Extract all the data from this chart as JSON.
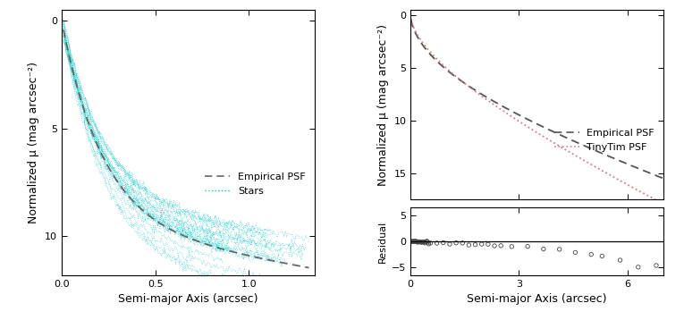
{
  "left_panel": {
    "xlabel": "Semi-major Axis (arcsec)",
    "ylabel": "Normalized μ (mag arcsec⁻²)",
    "xlim": [
      0.0,
      1.35
    ],
    "ylim": [
      11.8,
      -0.5
    ],
    "xticks": [
      0.0,
      0.5,
      1.0
    ],
    "yticks": [
      0,
      5,
      10
    ],
    "empirical_color": "#666666",
    "stars_color": "#00c5c5",
    "legend_labels": [
      "Empirical PSF",
      "Stars"
    ]
  },
  "right_top_panel": {
    "ylabel": "Normalized μ (mag arcsec⁻²)",
    "xlim": [
      0.0,
      7.0
    ],
    "ylim": [
      17.5,
      -0.5
    ],
    "xticks": [
      0,
      3,
      6
    ],
    "yticks": [
      0,
      5,
      10,
      15
    ],
    "empirical_color": "#555555",
    "tinytim_color": "#d08080",
    "legend_labels": [
      "Empirical PSF",
      "TinyTim PSF"
    ]
  },
  "right_bottom_panel": {
    "xlabel": "Semi-major Axis (arcsec)",
    "ylabel": "Residual",
    "xlim": [
      0.0,
      7.0
    ],
    "ylim": [
      -6.5,
      6.5
    ],
    "xticks": [
      0,
      3,
      6
    ],
    "yticks": [
      -5,
      0,
      5
    ],
    "zero_line_color": "#000000",
    "scatter_color": "#444444"
  },
  "background_color": "#ffffff",
  "font_size": 9
}
